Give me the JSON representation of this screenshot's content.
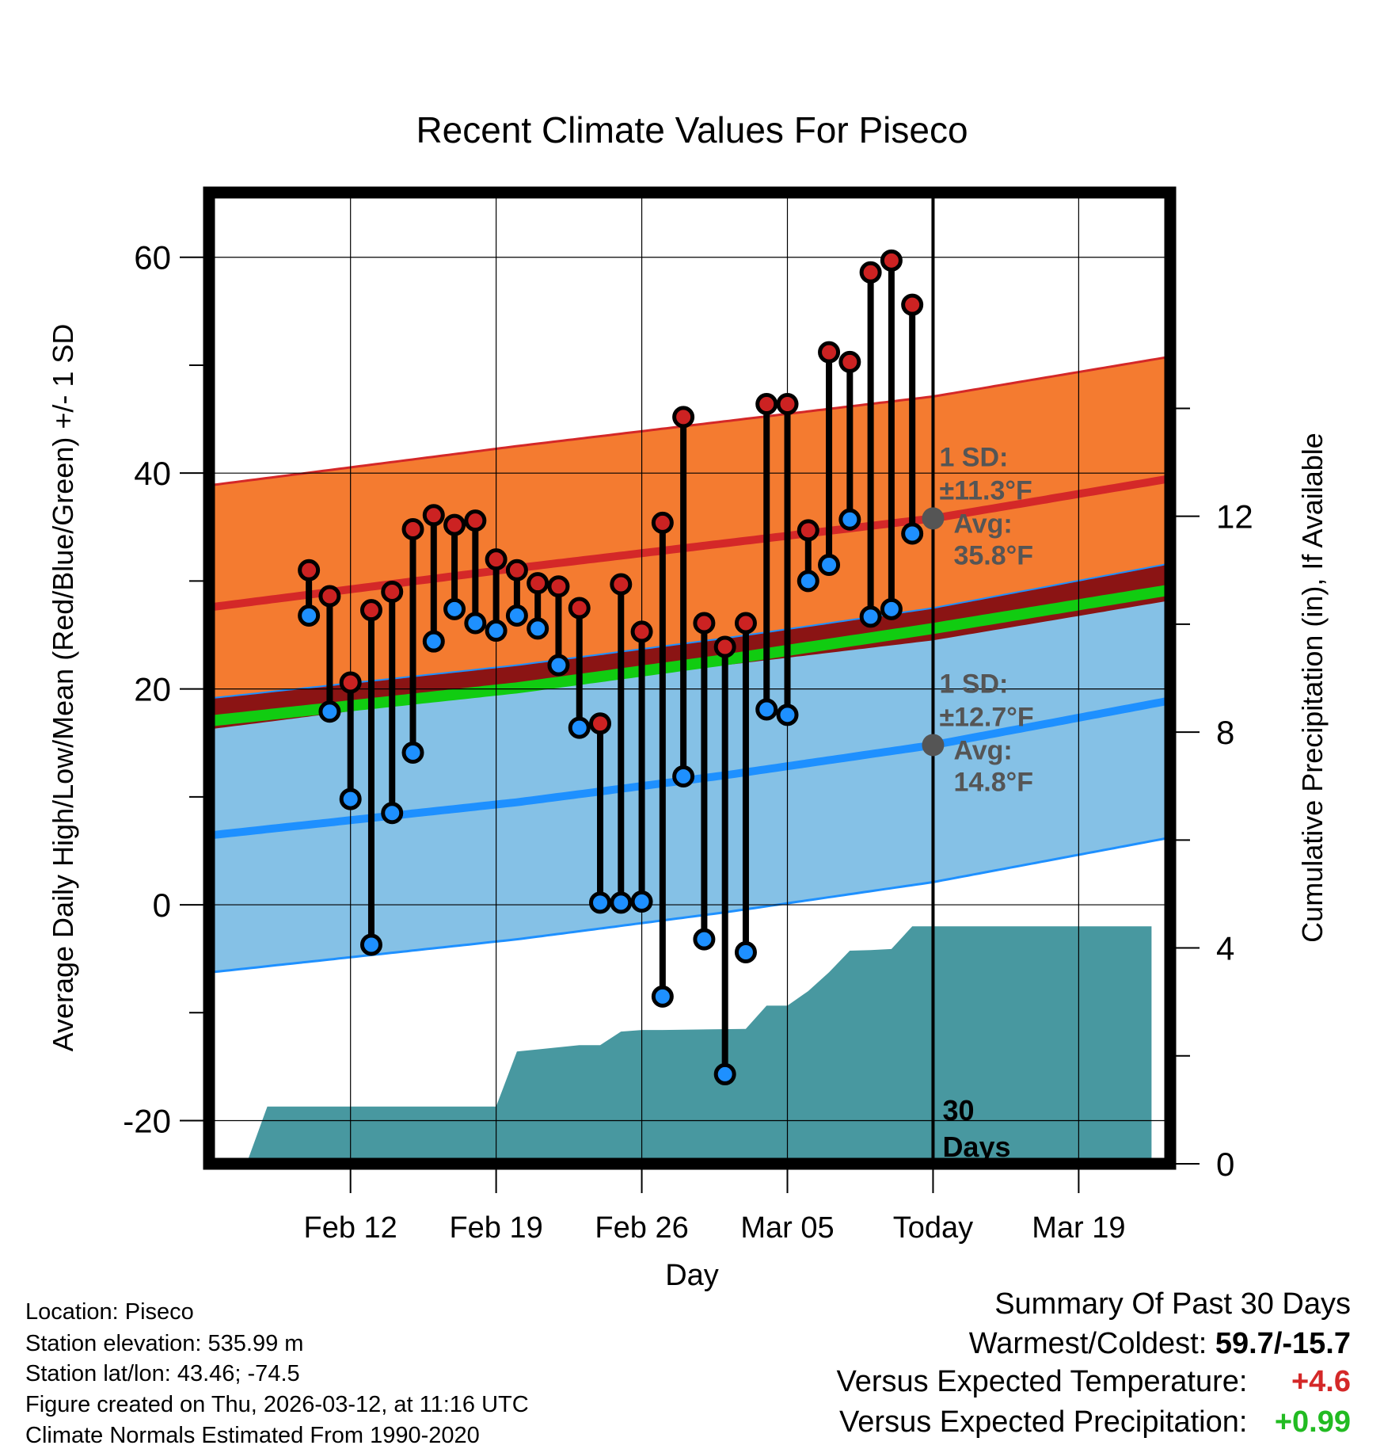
{
  "chart_data": {
    "type": "line",
    "title": "Recent Climate Values For Piseco",
    "xlabel": "Day",
    "ylabel": "Average Daily High/Low/Mean (Red/Blue/Green) +/- 1 SD",
    "y2label": "Cumulative Precipitation (in), If Available",
    "ylim": [
      -24,
      66
    ],
    "y2lim": [
      0,
      18
    ],
    "xlim": [
      -34.8,
      11.4
    ],
    "yticks": [
      -20,
      0,
      20,
      40,
      60
    ],
    "y2ticks": [
      0,
      4,
      8,
      12
    ],
    "x_ticks": [
      {
        "day": -28,
        "label": "Feb 12"
      },
      {
        "day": -21,
        "label": "Feb 19"
      },
      {
        "day": -14,
        "label": "Feb 26"
      },
      {
        "day": -7,
        "label": "Mar 05"
      },
      {
        "day": 0,
        "label": "Today"
      },
      {
        "day": 7,
        "label": "Mar 19"
      }
    ],
    "today_label": "30\nDays",
    "days": [
      -30,
      -29,
      -28,
      -27,
      -26,
      -25,
      -24,
      -23,
      -22,
      -21,
      -20,
      -19,
      -18,
      -17,
      -16,
      -15,
      -14,
      -13,
      -12,
      -11,
      -10,
      -9,
      -8,
      -7,
      -6,
      -5,
      -4,
      -3,
      -2,
      -1
    ],
    "highs": [
      31.0,
      28.6,
      20.6,
      27.3,
      29.0,
      34.8,
      36.1,
      35.2,
      35.6,
      32.0,
      31.0,
      29.8,
      29.5,
      27.5,
      16.8,
      29.7,
      25.3,
      35.4,
      45.2,
      26.1,
      23.9,
      26.1,
      46.4,
      46.4,
      34.7,
      51.2,
      50.3,
      58.6,
      59.7,
      55.6
    ],
    "lows": [
      26.8,
      17.9,
      9.8,
      -3.7,
      8.5,
      14.1,
      24.4,
      27.4,
      26.1,
      25.4,
      26.8,
      25.6,
      22.2,
      16.4,
      0.2,
      0.2,
      0.3,
      -8.5,
      11.9,
      -3.2,
      -15.7,
      -4.4,
      18.1,
      17.6,
      30.0,
      31.5,
      35.7,
      26.7,
      27.4,
      34.4
    ],
    "normals": {
      "days": [
        -33,
        -20,
        -10,
        0,
        10.5
      ],
      "high_avg": [
        28.0,
        31.2,
        33.5,
        35.8,
        39.2
      ],
      "high_sd": 11.3,
      "low_avg": [
        6.8,
        9.5,
        12.0,
        14.8,
        18.6
      ],
      "low_sd": 12.7,
      "mean_avg": [
        17.4,
        20.1,
        22.7,
        25.6,
        28.9
      ]
    },
    "precip_cumulative": {
      "days": [
        -33,
        -32,
        -30,
        -21,
        -20,
        -19,
        -17,
        -16,
        -15,
        -14,
        -13,
        -9,
        -8,
        -7,
        -6,
        -5,
        -4,
        -3,
        -2,
        -1,
        0,
        10.5
      ],
      "values": [
        0.0,
        1.06,
        1.06,
        1.06,
        2.08,
        2.12,
        2.2,
        2.2,
        2.45,
        2.48,
        2.48,
        2.5,
        2.93,
        2.93,
        3.2,
        3.55,
        3.95,
        3.96,
        3.98,
        4.4,
        4.4,
        4.4
      ]
    },
    "annotations": {
      "high_sd_label": "1 SD:",
      "high_sd_value": "±11.3°F",
      "high_avg_label": "Avg:",
      "high_avg_value": "35.8°F",
      "low_sd_label": "1 SD:",
      "low_sd_value": "±12.7°F",
      "low_avg_label": "Avg:",
      "low_avg_value": "14.8°F"
    }
  },
  "location": {
    "name": "Location: Piseco",
    "elevation": "Station elevation: 535.99 m",
    "latlon": "Station lat/lon: 43.46; -74.5",
    "created": "Figure created on Thu, 2026-03-12, at 11:16 UTC",
    "normals": "Climate Normals Estimated From 1990-2020"
  },
  "summary": {
    "title": "Summary Of Past 30 Days",
    "warm_cold_label": "Warmest/Coldest:",
    "warm_cold_value": "59.7/-15.7",
    "temp_label": "Versus Expected Temperature:",
    "temp_value": "+4.6",
    "precip_label": "Versus Expected Precipitation:",
    "precip_value": "+0.99"
  },
  "colors": {
    "orange_band": "#f47b30",
    "red_line": "#d42828",
    "dark_red_band": "#8b1414",
    "green_line": "#11cc11",
    "blue_band": "#85c1e6",
    "blue_line": "#1e90ff",
    "precip": "#4898a0",
    "high_dot": "#cc2222",
    "low_dot": "#1e90ff",
    "marker": "#555555",
    "temp_value": "#d42828",
    "precip_value": "#22bb22"
  }
}
